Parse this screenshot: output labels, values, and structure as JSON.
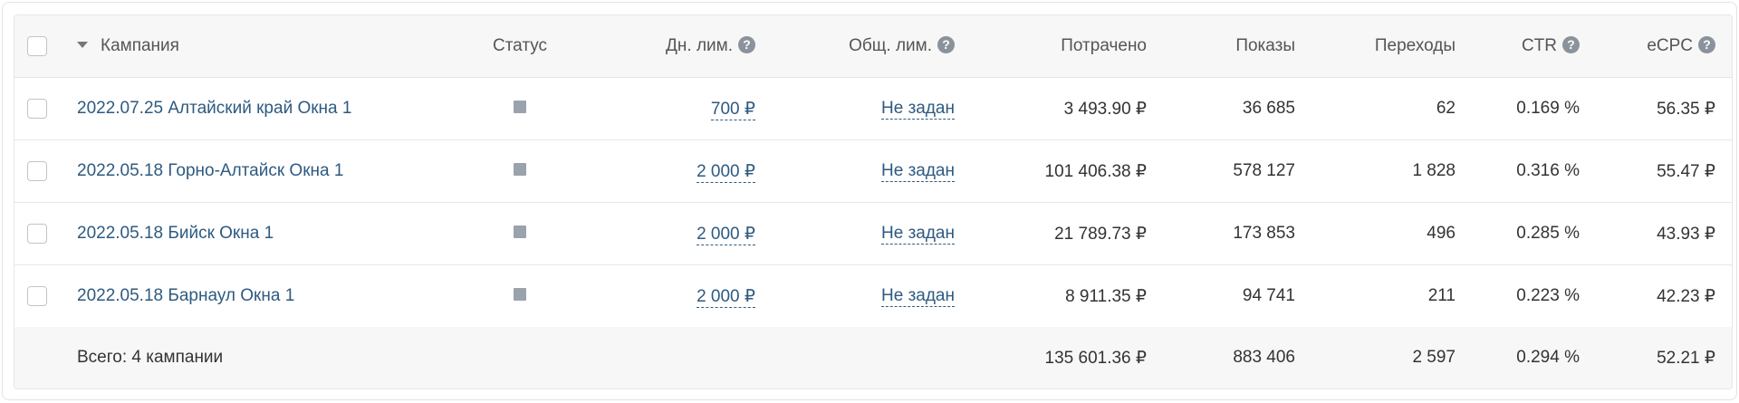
{
  "header": {
    "campaign": "Кампания",
    "status": "Статус",
    "daily_limit": "Дн. лим.",
    "total_limit": "Общ. лим.",
    "spent": "Потрачено",
    "impressions": "Показы",
    "clicks": "Переходы",
    "ctr": "CTR",
    "ecpc": "eCPC",
    "help_glyph": "?"
  },
  "rows": [
    {
      "campaign": "2022.07.25 Алтайский край Окна 1",
      "daily_limit": "700 ₽",
      "total_limit": "Не задан",
      "spent": "3 493.90 ₽",
      "impressions": "36 685",
      "clicks": "62",
      "ctr": "0.169 %",
      "ecpc": "56.35 ₽"
    },
    {
      "campaign": "2022.05.18 Горно-Алтайск Окна 1",
      "daily_limit": "2 000 ₽",
      "total_limit": "Не задан",
      "spent": "101 406.38 ₽",
      "impressions": "578 127",
      "clicks": "1 828",
      "ctr": "0.316 %",
      "ecpc": "55.47 ₽"
    },
    {
      "campaign": "2022.05.18 Бийск Окна 1",
      "daily_limit": "2 000 ₽",
      "total_limit": "Не задан",
      "spent": "21 789.73 ₽",
      "impressions": "173 853",
      "clicks": "496",
      "ctr": "0.285 %",
      "ecpc": "43.93 ₽"
    },
    {
      "campaign": "2022.05.18 Барнаул Окна 1",
      "daily_limit": "2 000 ₽",
      "total_limit": "Не задан",
      "spent": "8 911.35 ₽",
      "impressions": "94 741",
      "clicks": "211",
      "ctr": "0.223 %",
      "ecpc": "42.23 ₽"
    }
  ],
  "footer": {
    "label": "Всего: 4 кампании",
    "spent": "135 601.36 ₽",
    "impressions": "883 406",
    "clicks": "2 597",
    "ctr": "0.294 %",
    "ecpc": "52.21 ₽"
  },
  "colors": {
    "link": "#2e5a80",
    "status_paused": "#9aa3ad",
    "header_bg": "#f7f7f7"
  }
}
